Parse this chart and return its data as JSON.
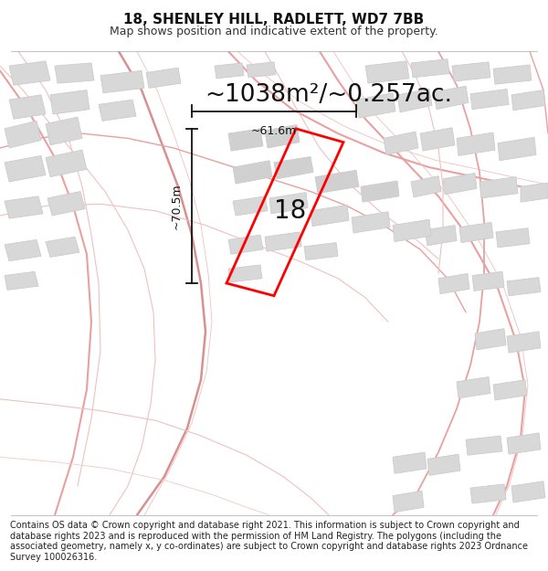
{
  "title": "18, SHENLEY HILL, RADLETT, WD7 7BB",
  "subtitle": "Map shows position and indicative extent of the property.",
  "area_text": "~1038m²/~0.257ac.",
  "label_18": "18",
  "dim_height": "~70.5m",
  "dim_width": "~61.6m",
  "footer": "Contains OS data © Crown copyright and database right 2021. This information is subject to Crown copyright and database rights 2023 and is reproduced with the permission of HM Land Registry. The polygons (including the associated geometry, namely x, y co-ordinates) are subject to Crown copyright and database rights 2023 Ordnance Survey 100026316.",
  "bg_color": "#ffffff",
  "map_bg": "#ffffff",
  "road_color": "#f0b0b0",
  "road_color2": "#e89898",
  "building_color": "#d8d8d8",
  "building_edge": "#cccccc",
  "plot_color": "#ff0000",
  "title_fontsize": 11,
  "subtitle_fontsize": 9,
  "area_fontsize": 19,
  "label_fontsize": 20,
  "dim_fontsize": 9,
  "footer_fontsize": 7.0,
  "road_lw": 1.0,
  "road_lw2": 0.5
}
